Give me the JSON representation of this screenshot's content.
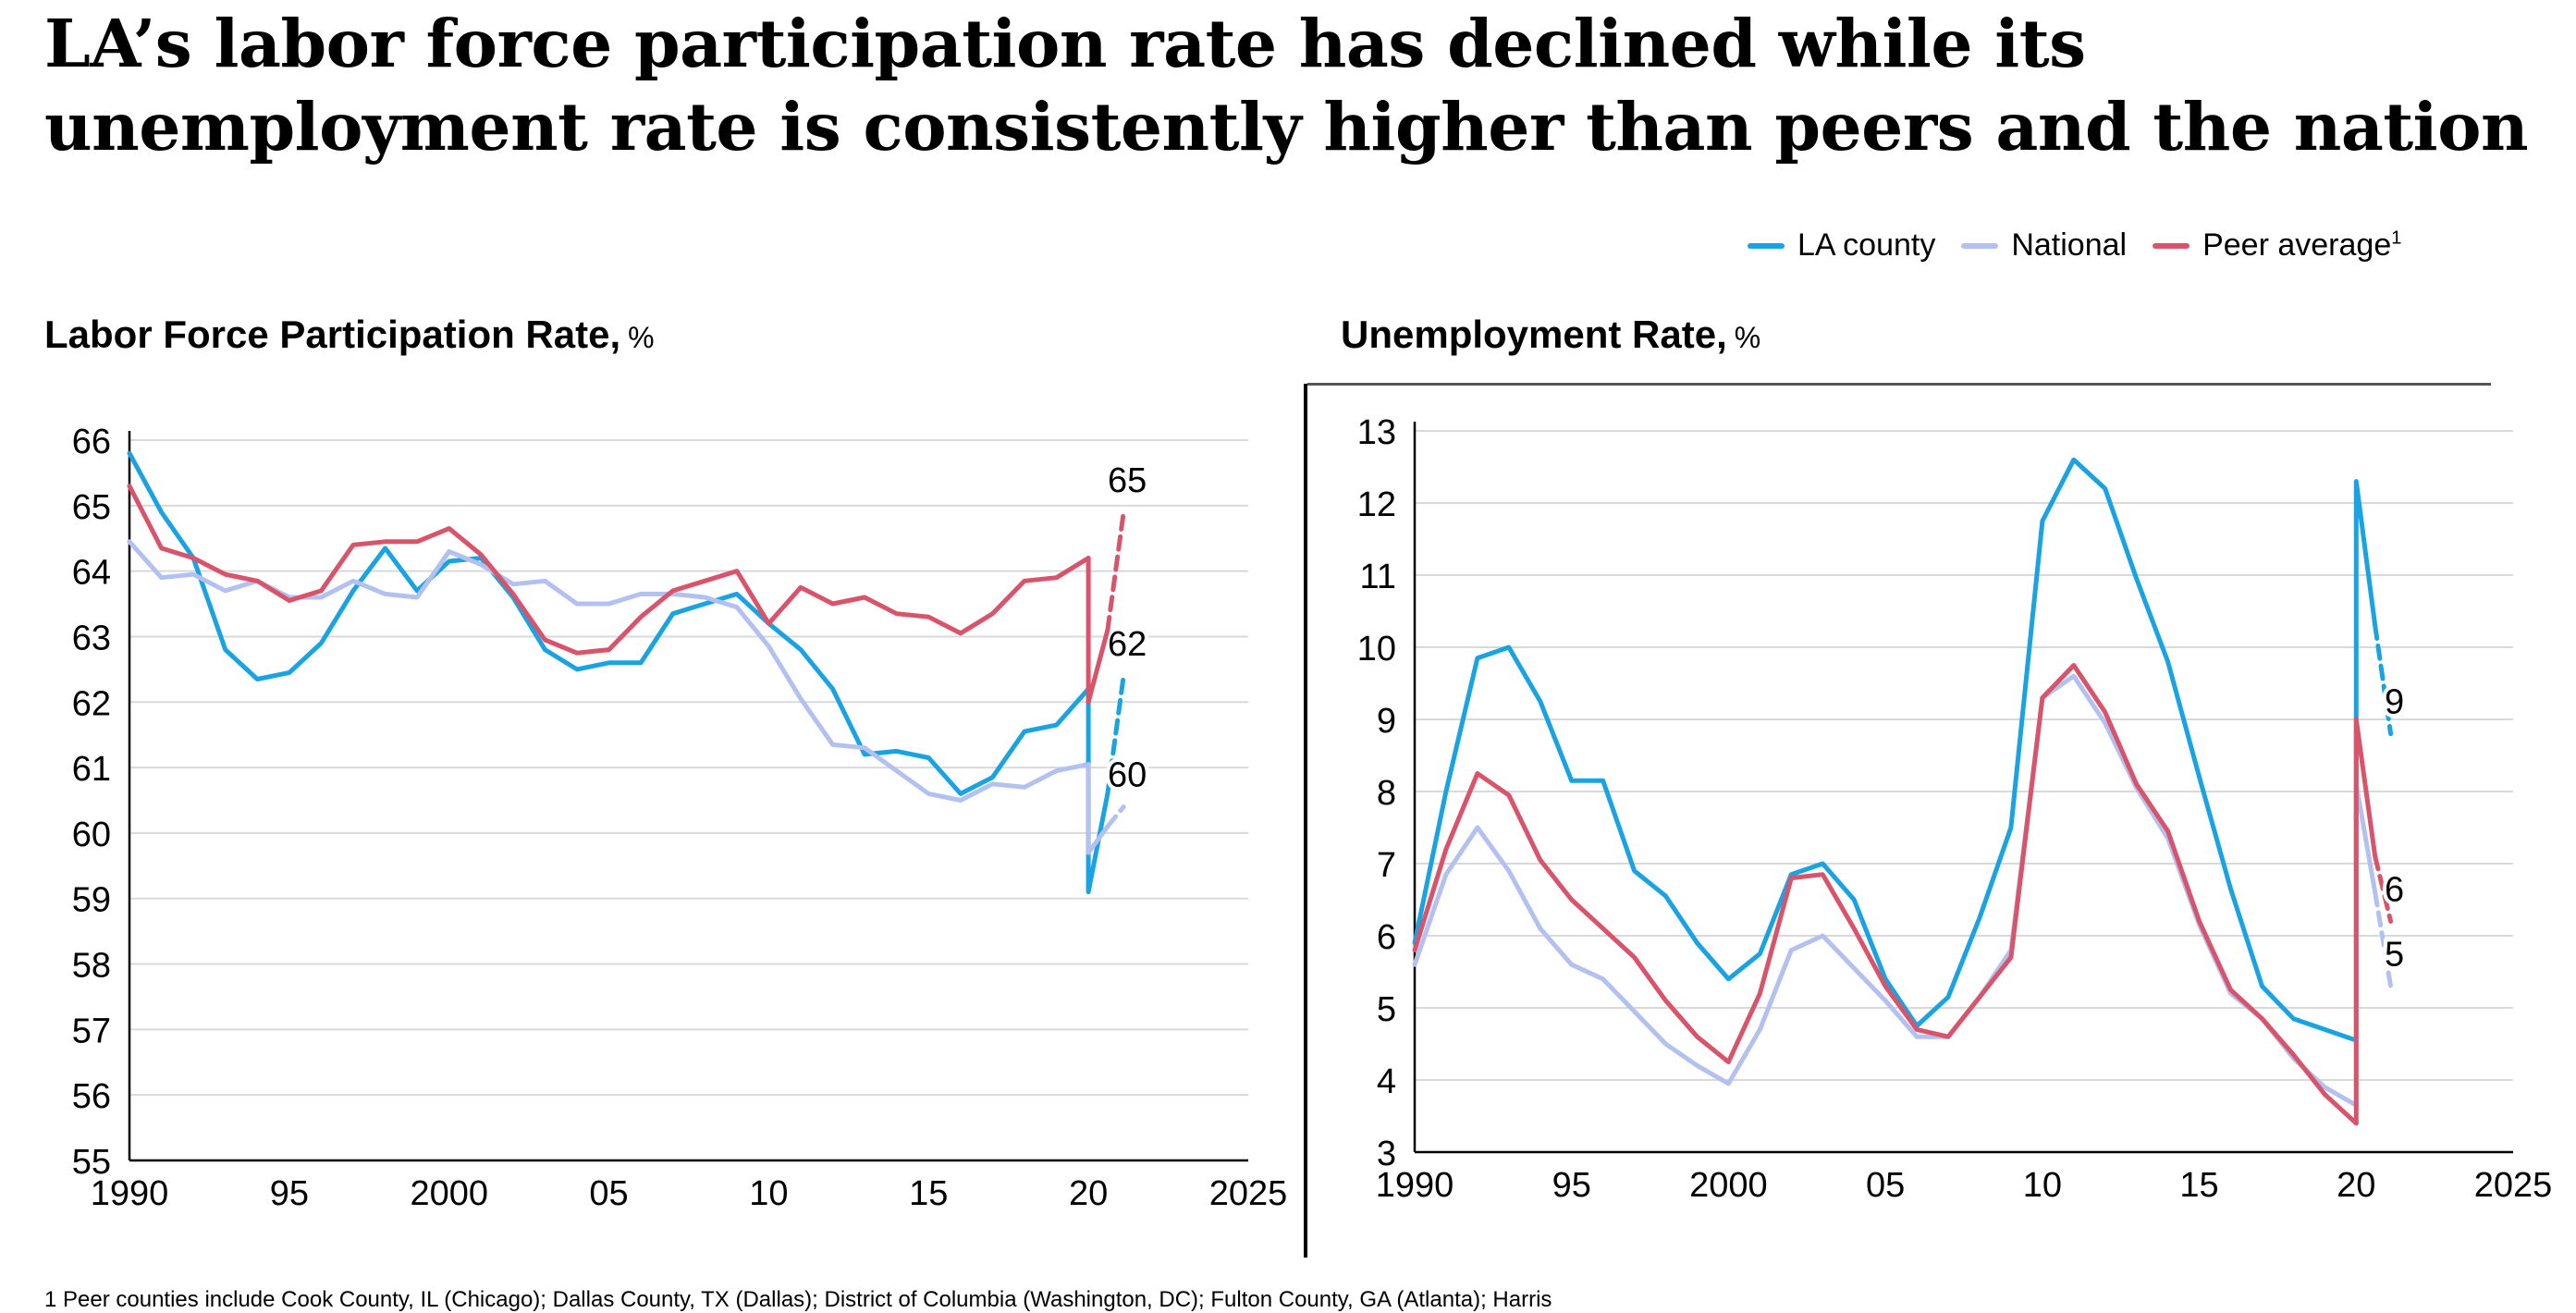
{
  "page": {
    "title": "LA’s labor force participation rate has declined while its unemployment rate is consistently higher than peers and the nation",
    "footnote": "1     Peer counties include Cook County, IL (Chicago); Dallas County, TX (Dallas); District of Columbia (Washington, DC); Fulton County, GA (Atlanta); Harris"
  },
  "legend": [
    {
      "name": "LA county",
      "sup": "",
      "color": "#1aa3e3"
    },
    {
      "name": "National",
      "sup": "",
      "color": "#b3c1f0"
    },
    {
      "name": "Peer average",
      "sup": "1",
      "color": "#d9536b"
    }
  ],
  "chart_data": [
    {
      "type": "line",
      "title": "Labor Force Participation Rate,",
      "unit": "%",
      "xlim": [
        1990,
        2025
      ],
      "ylim": [
        55,
        66
      ],
      "grid": true,
      "x_ticks": [
        1990,
        1995,
        2000,
        2005,
        2010,
        2015,
        2020,
        2025
      ],
      "x_tick_labels": [
        "1990",
        "95",
        "2000",
        "05",
        "10",
        "15",
        "20",
        "2025"
      ],
      "y_ticks": [
        55,
        56,
        57,
        58,
        59,
        60,
        61,
        62,
        63,
        64,
        65,
        66
      ],
      "y_tick_labels": [
        "55",
        "56",
        "57",
        "58",
        "59",
        "60",
        "61",
        "62",
        "63",
        "64",
        "65",
        "66"
      ],
      "series": [
        {
          "name": "LA county",
          "color": "#1aa3e3",
          "x": [
            1990,
            1991,
            1992,
            1993,
            1994,
            1995,
            1996,
            1997,
            1998,
            1999,
            2000,
            2001,
            2002,
            2003,
            2004,
            2005,
            2006,
            2007,
            2008,
            2009,
            2010,
            2011,
            2012,
            2013,
            2014,
            2015,
            2016,
            2017,
            2018,
            2019,
            2020
          ],
          "values": [
            65.8,
            64.9,
            64.2,
            62.8,
            62.35,
            62.45,
            62.9,
            63.7,
            64.35,
            63.7,
            64.15,
            64.2,
            63.6,
            62.8,
            62.5,
            62.6,
            62.6,
            63.35,
            63.5,
            63.65,
            63.2,
            62.8,
            62.2,
            61.2,
            61.25,
            61.15,
            60.6,
            60.85,
            61.55,
            61.65,
            62.2
          ]
        },
        {
          "name": "National",
          "color": "#b3c1f0",
          "x": [
            1990,
            1991,
            1992,
            1993,
            1994,
            1995,
            1996,
            1997,
            1998,
            1999,
            2000,
            2001,
            2002,
            2003,
            2004,
            2005,
            2006,
            2007,
            2008,
            2009,
            2010,
            2011,
            2012,
            2013,
            2014,
            2015,
            2016,
            2017,
            2018,
            2019,
            2020
          ],
          "values": [
            64.45,
            63.9,
            63.95,
            63.7,
            63.85,
            63.6,
            63.6,
            63.85,
            63.65,
            63.6,
            64.3,
            64.1,
            63.8,
            63.85,
            63.5,
            63.5,
            63.65,
            63.65,
            63.6,
            63.45,
            62.85,
            62.05,
            61.35,
            61.3,
            60.95,
            60.6,
            60.5,
            60.75,
            60.7,
            60.95,
            61.05
          ]
        },
        {
          "name": "Peer average",
          "color": "#d9536b",
          "x": [
            1990,
            1991,
            1992,
            1993,
            1994,
            1995,
            1996,
            1997,
            1998,
            1999,
            2000,
            2001,
            2002,
            2003,
            2004,
            2005,
            2006,
            2007,
            2008,
            2009,
            2010,
            2011,
            2012,
            2013,
            2014,
            2015,
            2016,
            2017,
            2018,
            2019,
            2020
          ],
          "values": [
            65.3,
            64.35,
            64.2,
            63.95,
            63.85,
            63.55,
            63.7,
            64.4,
            64.45,
            64.45,
            64.65,
            64.25,
            63.65,
            62.95,
            62.75,
            62.8,
            63.3,
            63.7,
            63.85,
            64.0,
            63.2,
            63.75,
            63.5,
            63.6,
            63.35,
            63.3,
            63.05,
            63.35,
            63.85,
            63.9,
            64.2
          ]
        }
      ],
      "recovery": [
        {
          "series": "LA county",
          "x": [
            2020,
            2020.6,
            2021.1
          ],
          "values": [
            59.1,
            60.6,
            62.4
          ],
          "label": "62"
        },
        {
          "series": "National",
          "x": [
            2020,
            2020.6,
            2021.1
          ],
          "values": [
            59.7,
            60.1,
            60.4
          ],
          "label": "60"
        },
        {
          "series": "Peer average",
          "x": [
            2020,
            2020.6,
            2021.1
          ],
          "values": [
            62.0,
            63.1,
            64.9
          ],
          "label": "65"
        }
      ]
    },
    {
      "type": "line",
      "title": "Unemployment Rate,",
      "unit": "%",
      "xlim": [
        1990,
        2025
      ],
      "ylim": [
        3,
        13
      ],
      "grid": true,
      "x_ticks": [
        1990,
        1995,
        2000,
        2005,
        2010,
        2015,
        2020,
        2025
      ],
      "x_tick_labels": [
        "1990",
        "95",
        "2000",
        "05",
        "10",
        "15",
        "20",
        "2025"
      ],
      "y_ticks": [
        3,
        4,
        5,
        6,
        7,
        8,
        9,
        10,
        11,
        12,
        13
      ],
      "y_tick_labels": [
        "3",
        "4",
        "5",
        "6",
        "7",
        "8",
        "9",
        "10",
        "11",
        "12",
        "13"
      ],
      "series": [
        {
          "name": "LA county",
          "color": "#1aa3e3",
          "x": [
            1990,
            1991,
            1992,
            1993,
            1994,
            1995,
            1996,
            1997,
            1998,
            1999,
            2000,
            2001,
            2002,
            2003,
            2004,
            2005,
            2006,
            2007,
            2008,
            2009,
            2010,
            2011,
            2012,
            2013,
            2014,
            2015,
            2016,
            2017,
            2018,
            2019,
            2020
          ],
          "values": [
            5.9,
            8.0,
            9.85,
            10.0,
            9.25,
            8.15,
            8.15,
            6.9,
            6.55,
            5.9,
            5.4,
            5.75,
            6.85,
            7.0,
            6.5,
            5.4,
            4.75,
            5.15,
            6.25,
            7.5,
            11.75,
            12.6,
            12.2,
            10.95,
            9.8,
            8.2,
            6.65,
            5.3,
            4.85,
            4.7,
            4.55
          ]
        },
        {
          "name": "National",
          "color": "#b3c1f0",
          "x": [
            1990,
            1991,
            1992,
            1993,
            1994,
            1995,
            1996,
            1997,
            1998,
            1999,
            2000,
            2001,
            2002,
            2003,
            2004,
            2005,
            2006,
            2007,
            2008,
            2009,
            2010,
            2011,
            2012,
            2013,
            2014,
            2015,
            2016,
            2017,
            2018,
            2019,
            2020
          ],
          "values": [
            5.6,
            6.85,
            7.5,
            6.9,
            6.1,
            5.6,
            5.4,
            4.95,
            4.5,
            4.2,
            3.95,
            4.7,
            5.8,
            6.0,
            5.55,
            5.1,
            4.6,
            4.6,
            5.15,
            5.8,
            9.3,
            9.6,
            8.95,
            8.05,
            7.35,
            6.15,
            5.2,
            4.85,
            4.3,
            3.9,
            3.65
          ]
        },
        {
          "name": "Peer average",
          "color": "#d9536b",
          "x": [
            1990,
            1991,
            1992,
            1993,
            1994,
            1995,
            1996,
            1997,
            1998,
            1999,
            2000,
            2001,
            2002,
            2003,
            2004,
            2005,
            2006,
            2007,
            2008,
            2009,
            2010,
            2011,
            2012,
            2013,
            2014,
            2015,
            2016,
            2017,
            2018,
            2019,
            2020
          ],
          "values": [
            5.8,
            7.2,
            8.25,
            7.95,
            7.05,
            6.5,
            6.1,
            5.7,
            5.1,
            4.6,
            4.25,
            5.2,
            6.8,
            6.85,
            6.1,
            5.3,
            4.7,
            4.6,
            5.15,
            5.7,
            9.3,
            9.75,
            9.1,
            8.1,
            7.45,
            6.2,
            5.25,
            4.85,
            4.35,
            3.8,
            3.4
          ]
        }
      ],
      "recovery": [
        {
          "series": "LA county",
          "x": [
            2020,
            2020.6,
            2021.1
          ],
          "values": [
            12.3,
            10.3,
            8.8
          ],
          "label": "9"
        },
        {
          "series": "National",
          "x": [
            2020,
            2020.6,
            2021.1
          ],
          "values": [
            8.1,
            6.6,
            5.3
          ],
          "label": "5"
        },
        {
          "series": "Peer average",
          "x": [
            2020,
            2020.6,
            2021.1
          ],
          "values": [
            9.0,
            7.1,
            6.2
          ],
          "label": "6"
        }
      ]
    }
  ]
}
